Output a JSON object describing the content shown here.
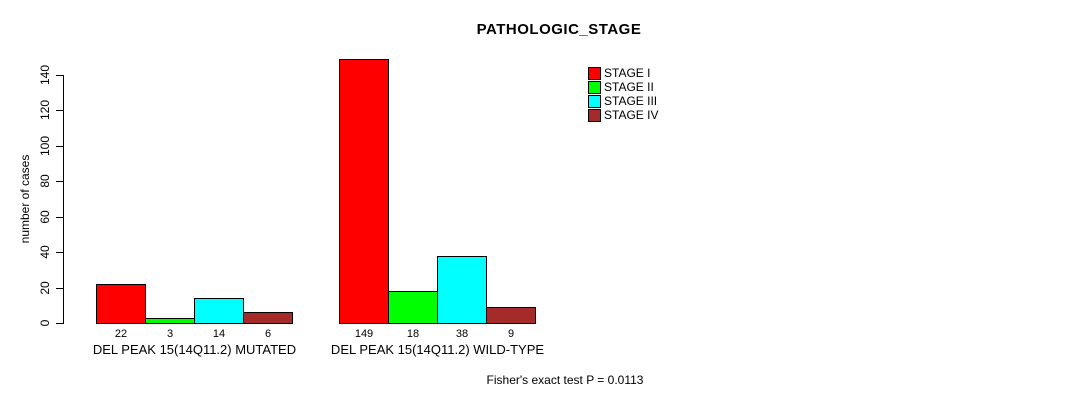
{
  "chart_data": {
    "type": "bar",
    "title": "PATHOLOGIC_STAGE",
    "ylabel": "number of cases",
    "xlabel": "",
    "ylim": [
      0,
      140
    ],
    "yticks": [
      0,
      20,
      40,
      60,
      80,
      100,
      120,
      140
    ],
    "grid": false,
    "legend_position": "top-right",
    "categories": [
      "DEL PEAK 15(14Q11.2) MUTATED",
      "DEL PEAK 15(14Q11.2) WILD-TYPE"
    ],
    "series": [
      {
        "name": "STAGE I",
        "color": "#FF0000",
        "values": [
          22,
          149
        ]
      },
      {
        "name": "STAGE II",
        "color": "#00FF00",
        "values": [
          3,
          18
        ]
      },
      {
        "name": "STAGE III",
        "color": "#00FFFF",
        "values": [
          14,
          38
        ]
      },
      {
        "name": "STAGE IV",
        "color": "#A52A2A",
        "values": [
          6,
          9
        ]
      }
    ],
    "bar_value_labels": [
      [
        "22",
        "3",
        "14",
        "6"
      ],
      [
        "149",
        "18",
        "38",
        "9"
      ]
    ],
    "annotation": "Fisher's exact test P = 0.0113"
  },
  "colors": {
    "background": "#FFFFFF",
    "axis": "#000000",
    "text": "#000000"
  }
}
